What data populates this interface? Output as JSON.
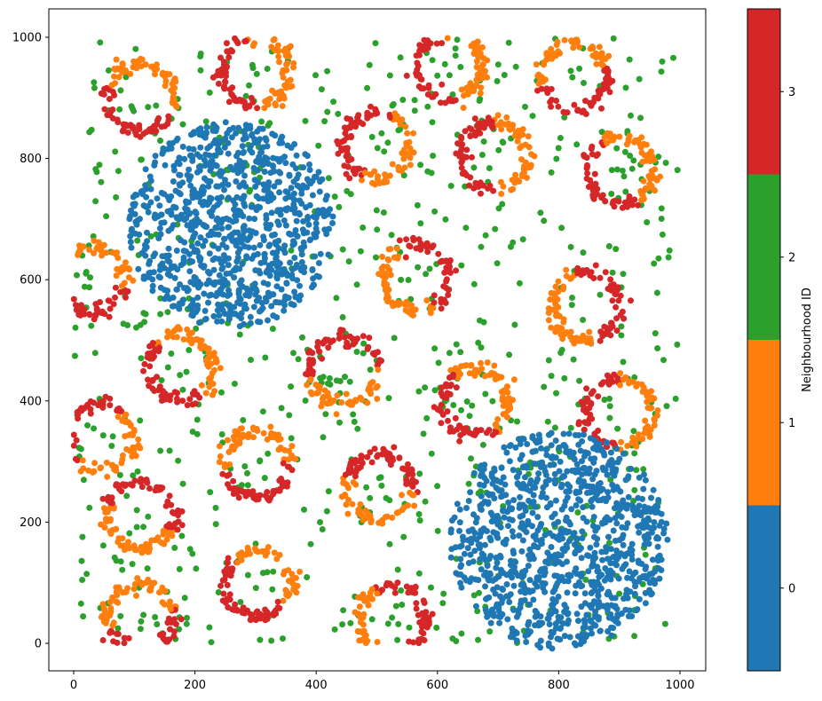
{
  "chart_data": {
    "type": "scatter",
    "title": "",
    "xlabel": "",
    "ylabel": "",
    "xlim": [
      -40,
      1040
    ],
    "ylim": [
      -45,
      1045
    ],
    "x_ticks": [
      0,
      200,
      400,
      600,
      800,
      1000
    ],
    "y_ticks": [
      0,
      200,
      400,
      600,
      800,
      1000
    ],
    "grid": false,
    "colorbar": {
      "label": "Neighbourhood ID",
      "ticks": [
        0,
        1,
        2,
        3
      ],
      "colors": [
        "#1f77b4",
        "#ff7f0e",
        "#2ca02c",
        "#d62728"
      ],
      "position": "right"
    },
    "series": [
      {
        "name": "0",
        "color": "#1f77b4",
        "description": "two dense blob clusters",
        "blobs": [
          {
            "cx": 260,
            "cy": 690,
            "r": 170,
            "n": 900
          },
          {
            "cx": 800,
            "cy": 170,
            "r": 180,
            "n": 950
          }
        ]
      },
      {
        "name": "1",
        "color": "#ff7f0e",
        "description": "ring-shaped clusters (orange portion)"
      },
      {
        "name": "2",
        "color": "#2ca02c",
        "description": "uniform background points",
        "n": 650
      },
      {
        "name": "3",
        "color": "#d62728",
        "description": "ring-shaped clusters (red portion)"
      }
    ],
    "rings": [
      {
        "cx": 110,
        "cy": 900,
        "r": 55
      },
      {
        "cx": 300,
        "cy": 940,
        "r": 55
      },
      {
        "cx": 620,
        "cy": 950,
        "r": 55
      },
      {
        "cx": 825,
        "cy": 935,
        "r": 55
      },
      {
        "cx": 500,
        "cy": 820,
        "r": 55
      },
      {
        "cx": 695,
        "cy": 805,
        "r": 55
      },
      {
        "cx": 900,
        "cy": 780,
        "r": 55
      },
      {
        "cx": 30,
        "cy": 600,
        "r": 55
      },
      {
        "cx": 565,
        "cy": 605,
        "r": 55
      },
      {
        "cx": 845,
        "cy": 555,
        "r": 55
      },
      {
        "cx": 175,
        "cy": 455,
        "r": 55
      },
      {
        "cx": 445,
        "cy": 450,
        "r": 55
      },
      {
        "cx": 660,
        "cy": 400,
        "r": 55
      },
      {
        "cx": 900,
        "cy": 380,
        "r": 55
      },
      {
        "cx": 45,
        "cy": 340,
        "r": 55
      },
      {
        "cx": 300,
        "cy": 295,
        "r": 55
      },
      {
        "cx": 505,
        "cy": 260,
        "r": 55
      },
      {
        "cx": 110,
        "cy": 210,
        "r": 55
      },
      {
        "cx": 305,
        "cy": 100,
        "r": 55
      },
      {
        "cx": 110,
        "cy": 40,
        "r": 55
      },
      {
        "cx": 525,
        "cy": 40,
        "r": 55
      }
    ],
    "marker_size_px": 6
  }
}
